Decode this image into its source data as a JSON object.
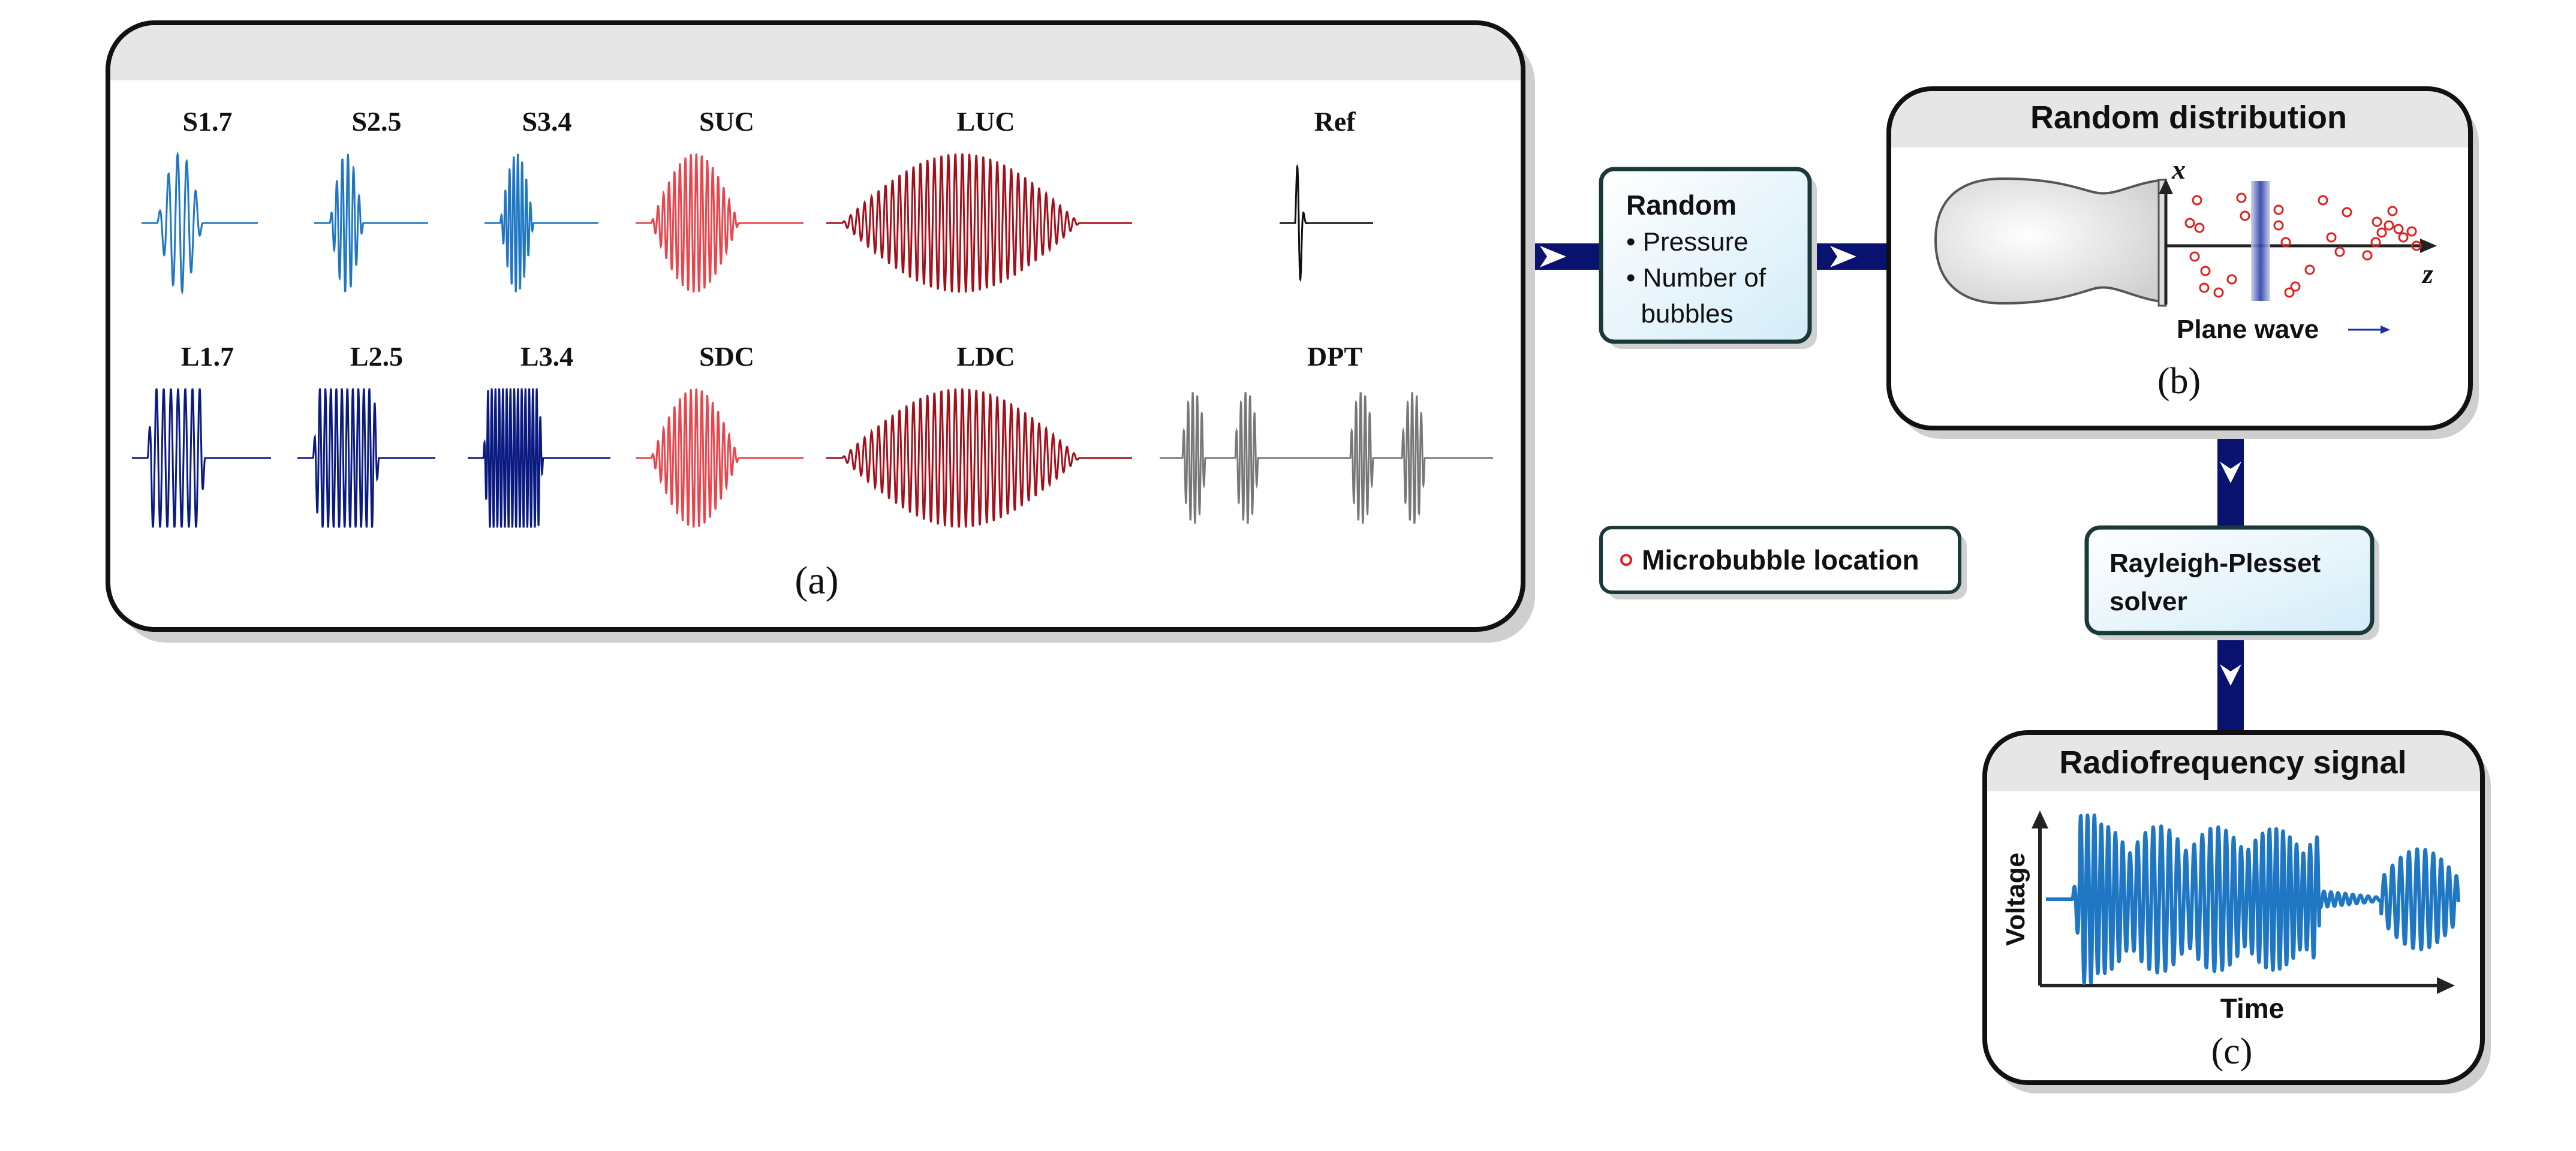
{
  "panel_a": {
    "caption": "(a)",
    "row1": [
      {
        "label": "S1.7",
        "color": "#1f77c4"
      },
      {
        "label": "S2.5",
        "color": "#1f77c4"
      },
      {
        "label": "S3.4",
        "color": "#1f77c4"
      },
      {
        "label": "SUC",
        "color": "#e8454c"
      },
      {
        "label": "LUC",
        "color": "#a3101a"
      },
      {
        "label": "Ref",
        "color": "#111111"
      }
    ],
    "row2": [
      {
        "label": "L1.7",
        "color": "#0a1a80"
      },
      {
        "label": "L2.5",
        "color": "#0a1a80"
      },
      {
        "label": "L3.4",
        "color": "#0a1a80"
      },
      {
        "label": "SDC",
        "color": "#e8454c"
      },
      {
        "label": "LDC",
        "color": "#a3101a"
      },
      {
        "label": "DPT",
        "color": "#777777"
      }
    ]
  },
  "random_box": {
    "title": "Random",
    "items": [
      "• Pressure",
      "• Number of",
      "  bubbles"
    ]
  },
  "legend": {
    "label": "Microbubble location",
    "marker_color": "#e02020"
  },
  "panel_b": {
    "title": "Random distribution",
    "axis_x": "x",
    "axis_z": "z",
    "plane_wave": "Plane wave",
    "caption": "(b)"
  },
  "solver_box": {
    "line1": "Rayleigh-Plesset",
    "line2": "solver"
  },
  "panel_c": {
    "title": "Radiofrequency signal",
    "ylabel": "Voltage",
    "xlabel": "Time",
    "caption": "(c)",
    "signal_color": "#1f77c4"
  },
  "colors": {
    "connector": "#0a1270",
    "box_border": "#1a3a3a",
    "box_fill_light": "#e6f4fb",
    "header_gray": "#e6e6e6",
    "bubble_red": "#e02020"
  }
}
